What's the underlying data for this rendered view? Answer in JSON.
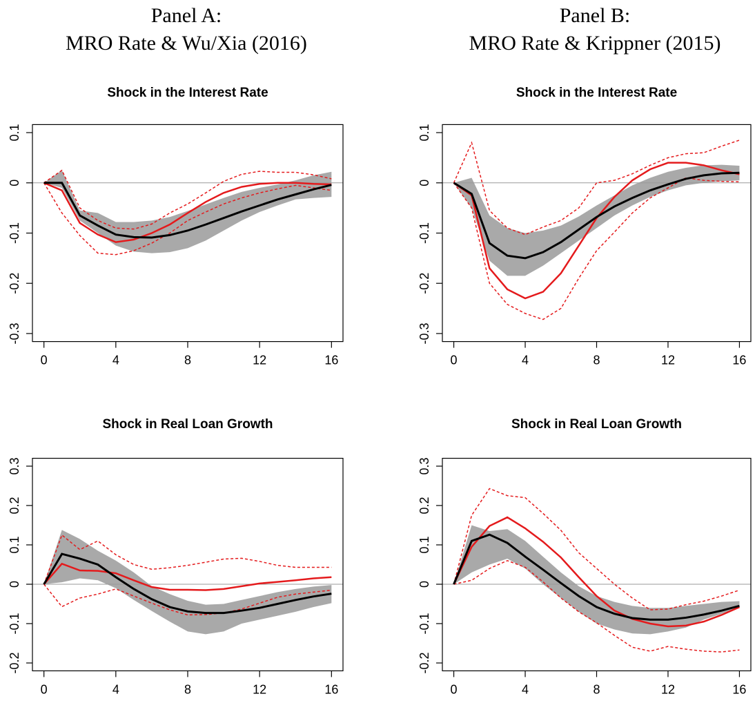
{
  "panels": [
    {
      "title": "Panel A:",
      "subtitle": "MRO Rate & Wu/Xia (2016)"
    },
    {
      "title": "Panel B:",
      "subtitle": "MRO Rate & Krippner (2015)"
    }
  ],
  "chart_data": [
    {
      "type": "line",
      "title": "Shock in the Interest Rate",
      "x": [
        0,
        1,
        2,
        3,
        4,
        5,
        6,
        7,
        8,
        9,
        10,
        11,
        12,
        13,
        14,
        15,
        16
      ],
      "xlim": [
        -0.64,
        16.64
      ],
      "xticks": [
        0,
        4,
        8,
        12,
        16
      ],
      "ylim": [
        -0.316,
        0.116
      ],
      "yticks": [
        -0.3,
        -0.2,
        -0.1,
        0,
        0.1
      ],
      "hline": 0,
      "bands": [
        {
          "color": "#a9a9a9",
          "upper": [
            0,
            0.025,
            -0.055,
            -0.06,
            -0.078,
            -0.078,
            -0.075,
            -0.068,
            -0.056,
            -0.043,
            -0.03,
            -0.018,
            -0.01,
            -0.003,
            0.005,
            0.015,
            0.022
          ],
          "lower": [
            0,
            -0.01,
            -0.075,
            -0.1,
            -0.125,
            -0.137,
            -0.14,
            -0.138,
            -0.13,
            -0.115,
            -0.095,
            -0.075,
            -0.058,
            -0.045,
            -0.033,
            -0.03,
            -0.028
          ]
        }
      ],
      "series": [
        {
          "color": "#e41a1c",
          "style": "dashed",
          "width": 1.5,
          "values": [
            0,
            0.025,
            -0.05,
            -0.075,
            -0.09,
            -0.092,
            -0.082,
            -0.06,
            -0.042,
            -0.02,
            0.003,
            0.017,
            0.023,
            0.021,
            0.021,
            0.016,
            0.008
          ]
        },
        {
          "color": "#e41a1c",
          "style": "dashed",
          "width": 1.5,
          "values": [
            0,
            -0.06,
            -0.105,
            -0.14,
            -0.143,
            -0.135,
            -0.12,
            -0.1,
            -0.075,
            -0.058,
            -0.042,
            -0.03,
            -0.02,
            -0.012,
            -0.005,
            -0.01,
            -0.015
          ]
        },
        {
          "color": "#e41a1c",
          "style": "solid",
          "width": 2.5,
          "values": [
            0,
            -0.015,
            -0.08,
            -0.103,
            -0.118,
            -0.113,
            -0.1,
            -0.083,
            -0.06,
            -0.038,
            -0.02,
            -0.008,
            -0.002,
            0,
            0,
            -0.002,
            -0.003
          ]
        },
        {
          "color": "#000000",
          "style": "solid",
          "width": 3,
          "values": [
            0,
            0,
            -0.065,
            -0.085,
            -0.103,
            -0.108,
            -0.109,
            -0.104,
            -0.095,
            -0.083,
            -0.07,
            -0.057,
            -0.045,
            -0.033,
            -0.023,
            -0.013,
            -0.004
          ]
        }
      ]
    },
    {
      "type": "line",
      "title": "Shock in the Interest Rate",
      "x": [
        0,
        1,
        2,
        3,
        4,
        5,
        6,
        7,
        8,
        9,
        10,
        11,
        12,
        13,
        14,
        15,
        16
      ],
      "xlim": [
        -0.64,
        16.64
      ],
      "xticks": [
        0,
        4,
        8,
        12,
        16
      ],
      "ylim": [
        -0.316,
        0.116
      ],
      "yticks": [
        -0.3,
        -0.2,
        -0.1,
        0,
        0.1
      ],
      "hline": 0,
      "bands": [
        {
          "color": "#a9a9a9",
          "upper": [
            0,
            0.01,
            -0.065,
            -0.09,
            -0.1,
            -0.095,
            -0.085,
            -0.067,
            -0.045,
            -0.025,
            -0.005,
            0.01,
            0.022,
            0.03,
            0.035,
            0.036,
            0.034
          ],
          "lower": [
            0,
            -0.05,
            -0.155,
            -0.185,
            -0.185,
            -0.165,
            -0.14,
            -0.115,
            -0.09,
            -0.065,
            -0.045,
            -0.028,
            -0.015,
            -0.005,
            0,
            0.003,
            0.005
          ]
        }
      ],
      "series": [
        {
          "color": "#e41a1c",
          "style": "dashed",
          "width": 1.5,
          "values": [
            0,
            0.08,
            -0.055,
            -0.09,
            -0.103,
            -0.088,
            -0.075,
            -0.05,
            0,
            0.005,
            0.018,
            0.035,
            0.05,
            0.058,
            0.06,
            0.073,
            0.085
          ]
        },
        {
          "color": "#e41a1c",
          "style": "dashed",
          "width": 1.5,
          "values": [
            0,
            -0.05,
            -0.2,
            -0.242,
            -0.26,
            -0.272,
            -0.25,
            -0.19,
            -0.135,
            -0.098,
            -0.06,
            -0.03,
            -0.01,
            0.01,
            0.005,
            0.003,
            0.002
          ]
        },
        {
          "color": "#e41a1c",
          "style": "solid",
          "width": 2.5,
          "values": [
            0,
            -0.025,
            -0.17,
            -0.212,
            -0.23,
            -0.217,
            -0.18,
            -0.125,
            -0.07,
            -0.028,
            0.005,
            0.027,
            0.04,
            0.04,
            0.035,
            0.025,
            0.017
          ]
        },
        {
          "color": "#000000",
          "style": "solid",
          "width": 3,
          "values": [
            0,
            -0.022,
            -0.12,
            -0.145,
            -0.15,
            -0.138,
            -0.118,
            -0.093,
            -0.068,
            -0.047,
            -0.03,
            -0.015,
            -0.003,
            0.008,
            0.015,
            0.019,
            0.02
          ]
        }
      ]
    },
    {
      "type": "line",
      "title": "Shock in Real Loan Growth",
      "x": [
        0,
        1,
        2,
        3,
        4,
        5,
        6,
        7,
        8,
        9,
        10,
        11,
        12,
        13,
        14,
        15,
        16
      ],
      "xlim": [
        -0.64,
        16.64
      ],
      "xticks": [
        0,
        4,
        8,
        12,
        16
      ],
      "ylim": [
        -0.22,
        0.32
      ],
      "yticks": [
        -0.2,
        -0.1,
        0,
        0.1,
        0.2,
        0.3
      ],
      "hline": 0,
      "bands": [
        {
          "color": "#a9a9a9",
          "upper": [
            0,
            0.138,
            0.115,
            0.085,
            0.06,
            0.03,
            -0.005,
            -0.025,
            -0.042,
            -0.052,
            -0.05,
            -0.04,
            -0.03,
            -0.02,
            -0.012,
            -0.006,
            -0.002
          ],
          "lower": [
            0,
            0.005,
            0.015,
            0.01,
            -0.01,
            -0.04,
            -0.068,
            -0.095,
            -0.12,
            -0.127,
            -0.12,
            -0.1,
            -0.09,
            -0.08,
            -0.07,
            -0.058,
            -0.048
          ]
        }
      ],
      "series": [
        {
          "color": "#e41a1c",
          "style": "dashed",
          "width": 1.5,
          "values": [
            0,
            0.125,
            0.088,
            0.11,
            0.075,
            0.05,
            0.038,
            0.042,
            0.048,
            0.056,
            0.064,
            0.066,
            0.058,
            0.048,
            0.043,
            0.043,
            0.043
          ]
        },
        {
          "color": "#e41a1c",
          "style": "dashed",
          "width": 1.5,
          "values": [
            0,
            -0.057,
            -0.035,
            -0.025,
            -0.012,
            -0.03,
            -0.048,
            -0.065,
            -0.078,
            -0.077,
            -0.073,
            -0.063,
            -0.048,
            -0.033,
            -0.025,
            -0.02,
            -0.015
          ]
        },
        {
          "color": "#e41a1c",
          "style": "solid",
          "width": 2.5,
          "values": [
            0,
            0.052,
            0.035,
            0.034,
            0.028,
            0.01,
            -0.007,
            -0.014,
            -0.014,
            -0.015,
            -0.012,
            -0.005,
            0.002,
            0.006,
            0.01,
            0.015,
            0.018
          ]
        },
        {
          "color": "#000000",
          "style": "solid",
          "width": 3,
          "values": [
            0,
            0.077,
            0.065,
            0.05,
            0.018,
            -0.012,
            -0.038,
            -0.058,
            -0.069,
            -0.073,
            -0.073,
            -0.067,
            -0.06,
            -0.05,
            -0.04,
            -0.031,
            -0.024
          ]
        }
      ]
    },
    {
      "type": "line",
      "title": "Shock in Real Loan Growth",
      "x": [
        0,
        1,
        2,
        3,
        4,
        5,
        6,
        7,
        8,
        9,
        10,
        11,
        12,
        13,
        14,
        15,
        16
      ],
      "xlim": [
        -0.64,
        16.64
      ],
      "xticks": [
        0,
        4,
        8,
        12,
        16
      ],
      "ylim": [
        -0.22,
        0.32
      ],
      "yticks": [
        -0.2,
        -0.1,
        0,
        0.1,
        0.2,
        0.3
      ],
      "hline": 0,
      "bands": [
        {
          "color": "#a9a9a9",
          "upper": [
            0,
            0.15,
            0.135,
            0.14,
            0.11,
            0.07,
            0.03,
            -0.005,
            -0.03,
            -0.045,
            -0.055,
            -0.06,
            -0.06,
            -0.055,
            -0.05,
            -0.045,
            -0.043
          ],
          "lower": [
            0,
            0.03,
            0.05,
            0.065,
            0.04,
            0,
            -0.035,
            -0.07,
            -0.1,
            -0.115,
            -0.125,
            -0.127,
            -0.12,
            -0.11,
            -0.09,
            -0.075,
            -0.06
          ]
        }
      ],
      "series": [
        {
          "color": "#e41a1c",
          "style": "dashed",
          "width": 1.5,
          "values": [
            0,
            0.175,
            0.243,
            0.225,
            0.22,
            0.18,
            0.137,
            0.08,
            0.04,
            0,
            -0.035,
            -0.065,
            -0.063,
            -0.052,
            -0.043,
            -0.03,
            -0.015
          ]
        },
        {
          "color": "#e41a1c",
          "style": "dashed",
          "width": 1.5,
          "values": [
            0,
            0.01,
            0.04,
            0.06,
            0.043,
            0.006,
            -0.035,
            -0.07,
            -0.098,
            -0.13,
            -0.16,
            -0.17,
            -0.158,
            -0.165,
            -0.17,
            -0.172,
            -0.167
          ]
        },
        {
          "color": "#e41a1c",
          "style": "solid",
          "width": 2.5,
          "values": [
            0,
            0.095,
            0.148,
            0.17,
            0.142,
            0.108,
            0.068,
            0.018,
            -0.03,
            -0.067,
            -0.088,
            -0.1,
            -0.107,
            -0.105,
            -0.095,
            -0.078,
            -0.058
          ]
        },
        {
          "color": "#000000",
          "style": "solid",
          "width": 3,
          "values": [
            0,
            0.11,
            0.126,
            0.105,
            0.07,
            0.037,
            0.003,
            -0.03,
            -0.058,
            -0.075,
            -0.086,
            -0.09,
            -0.09,
            -0.085,
            -0.077,
            -0.067,
            -0.055
          ]
        }
      ]
    }
  ]
}
